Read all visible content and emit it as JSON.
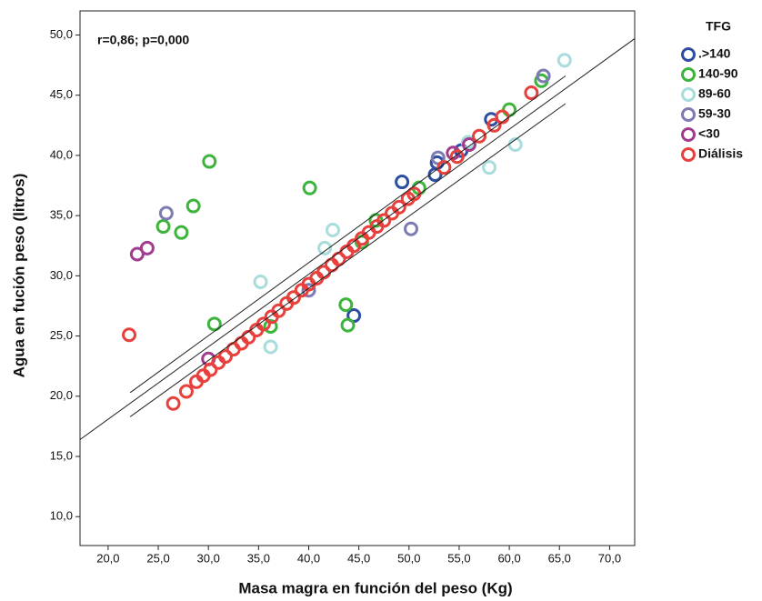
{
  "chart_data": {
    "type": "scatter",
    "x_label": "Masa magra en función del peso (Kg)",
    "y_label": "Agua en fución peso (litros)",
    "annotation": "r=0,86; p=0,000",
    "legend_title": "TFG",
    "legend_position": "right",
    "xlim": [
      17.2,
      72.5
    ],
    "ylim": [
      7.6,
      52
    ],
    "xticks": [
      {
        "value": 20,
        "label": "20,0"
      },
      {
        "value": 25,
        "label": "25,0"
      },
      {
        "value": 30,
        "label": "30,0"
      },
      {
        "value": 35,
        "label": "35,0"
      },
      {
        "value": 40,
        "label": "40,0"
      },
      {
        "value": 45,
        "label": "45,0"
      },
      {
        "value": 50,
        "label": "50,0"
      },
      {
        "value": 55,
        "label": "55,0"
      },
      {
        "value": 60,
        "label": "60,0"
      },
      {
        "value": 65,
        "label": "65,0"
      },
      {
        "value": 70,
        "label": "70,0"
      }
    ],
    "yticks": [
      {
        "value": 10,
        "label": "10,0"
      },
      {
        "value": 15,
        "label": "15,0"
      },
      {
        "value": 20,
        "label": "20,0"
      },
      {
        "value": 25,
        "label": "25,0"
      },
      {
        "value": 30,
        "label": "30,0"
      },
      {
        "value": 35,
        "label": "35,0"
      },
      {
        "value": 40,
        "label": "40,0"
      },
      {
        "value": 45,
        "label": "45,0"
      },
      {
        "value": 50,
        "label": "50,0"
      }
    ],
    "lines": [
      {
        "x": [
          17.2,
          72.5
        ],
        "y": [
          16.4,
          49.7
        ]
      },
      {
        "x": [
          22.2,
          65.6
        ],
        "y": [
          20.3,
          46.6
        ]
      },
      {
        "x": [
          22.2,
          65.6
        ],
        "y": [
          18.3,
          44.3
        ]
      }
    ],
    "series": [
      {
        "name": ".>140",
        "color": "#2f4ea3",
        "x": [
          49.3,
          44.5,
          52.8,
          52.6,
          55.2,
          58.2
        ],
        "y": [
          37.8,
          26.7,
          39.4,
          38.4,
          40.4,
          43.0
        ]
      },
      {
        "name": "140-90",
        "color": "#3db53d",
        "x": [
          30.1,
          28.5,
          27.3,
          25.5,
          30.6,
          40.1,
          43.7,
          43.9,
          36.2,
          51.0,
          60.0,
          63.2,
          46.7,
          45.3
        ],
        "y": [
          39.5,
          35.8,
          33.6,
          34.1,
          26.0,
          37.3,
          27.6,
          25.9,
          25.8,
          37.3,
          43.8,
          46.2,
          34.6,
          32.8
        ]
      },
      {
        "name": "89-60",
        "color": "#a9dcdc",
        "x": [
          65.5,
          60.6,
          58.0,
          35.2,
          36.2,
          42.4,
          41.6,
          55.9
        ],
        "y": [
          47.9,
          40.9,
          39.0,
          29.5,
          24.1,
          33.8,
          32.3,
          41.1
        ]
      },
      {
        "name": "59-30",
        "color": "#7c7cb2",
        "x": [
          25.8,
          50.2,
          63.4,
          52.9,
          40.0
        ],
        "y": [
          35.2,
          33.9,
          46.6,
          39.8,
          28.8
        ]
      },
      {
        "name": "<30",
        "color": "#a23c8e",
        "x": [
          22.9,
          23.9,
          30.0,
          56.0,
          54.4
        ],
        "y": [
          31.8,
          32.3,
          23.1,
          40.9,
          40.2
        ]
      },
      {
        "name": "Diálisis",
        "color": "#e8403c",
        "x": [
          22.1,
          26.5,
          27.8,
          28.8,
          29.5,
          30.2,
          31.0,
          31.7,
          32.5,
          33.3,
          34.0,
          34.8,
          35.5,
          36.3,
          37.0,
          37.8,
          38.5,
          39.3,
          40.0,
          40.8,
          41.5,
          42.3,
          43.0,
          43.8,
          44.5,
          45.3,
          46.0,
          46.8,
          47.5,
          48.3,
          49.0,
          49.9,
          50.5,
          53.5,
          54.8,
          57.0,
          58.5,
          59.3,
          62.2
        ],
        "y": [
          25.1,
          19.4,
          20.4,
          21.2,
          21.7,
          22.2,
          22.8,
          23.3,
          23.9,
          24.4,
          24.9,
          25.5,
          26.0,
          26.6,
          27.1,
          27.7,
          28.2,
          28.8,
          29.3,
          29.8,
          30.3,
          30.9,
          31.4,
          32.0,
          32.5,
          33.1,
          33.6,
          34.1,
          34.6,
          35.2,
          35.7,
          36.4,
          36.8,
          39.0,
          39.9,
          41.6,
          42.5,
          43.2,
          45.2
        ]
      }
    ]
  }
}
